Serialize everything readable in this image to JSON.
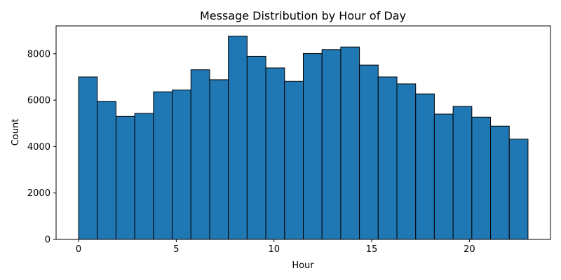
{
  "chart_data": {
    "type": "bar",
    "title": "Message Distribution by Hour of Day",
    "xlabel": "Hour",
    "ylabel": "Count",
    "bin_edges": [
      0,
      0.9583,
      1.9167,
      2.875,
      3.8333,
      4.7917,
      5.75,
      6.7083,
      7.6667,
      8.625,
      9.5833,
      10.5417,
      11.5,
      12.4583,
      13.4167,
      14.375,
      15.3333,
      16.2917,
      17.25,
      18.2083,
      19.1667,
      20.125,
      21.0833,
      22.0417,
      23
    ],
    "values": [
      7000,
      5950,
      5300,
      5430,
      6360,
      6440,
      7310,
      6880,
      8760,
      7890,
      7390,
      6810,
      8010,
      8180,
      8290,
      7510,
      7000,
      6700,
      6270,
      5400,
      5730,
      5270,
      4880,
      4320
    ],
    "xlim": [
      -1.15,
      24.15
    ],
    "ylim": [
      0,
      9200
    ],
    "xticks": [
      0,
      5,
      10,
      15,
      20
    ],
    "yticks": [
      0,
      2000,
      4000,
      6000,
      8000
    ],
    "bar_color": "#1f77b4",
    "edge_color": "#000000",
    "grid": false,
    "legend": false
  }
}
